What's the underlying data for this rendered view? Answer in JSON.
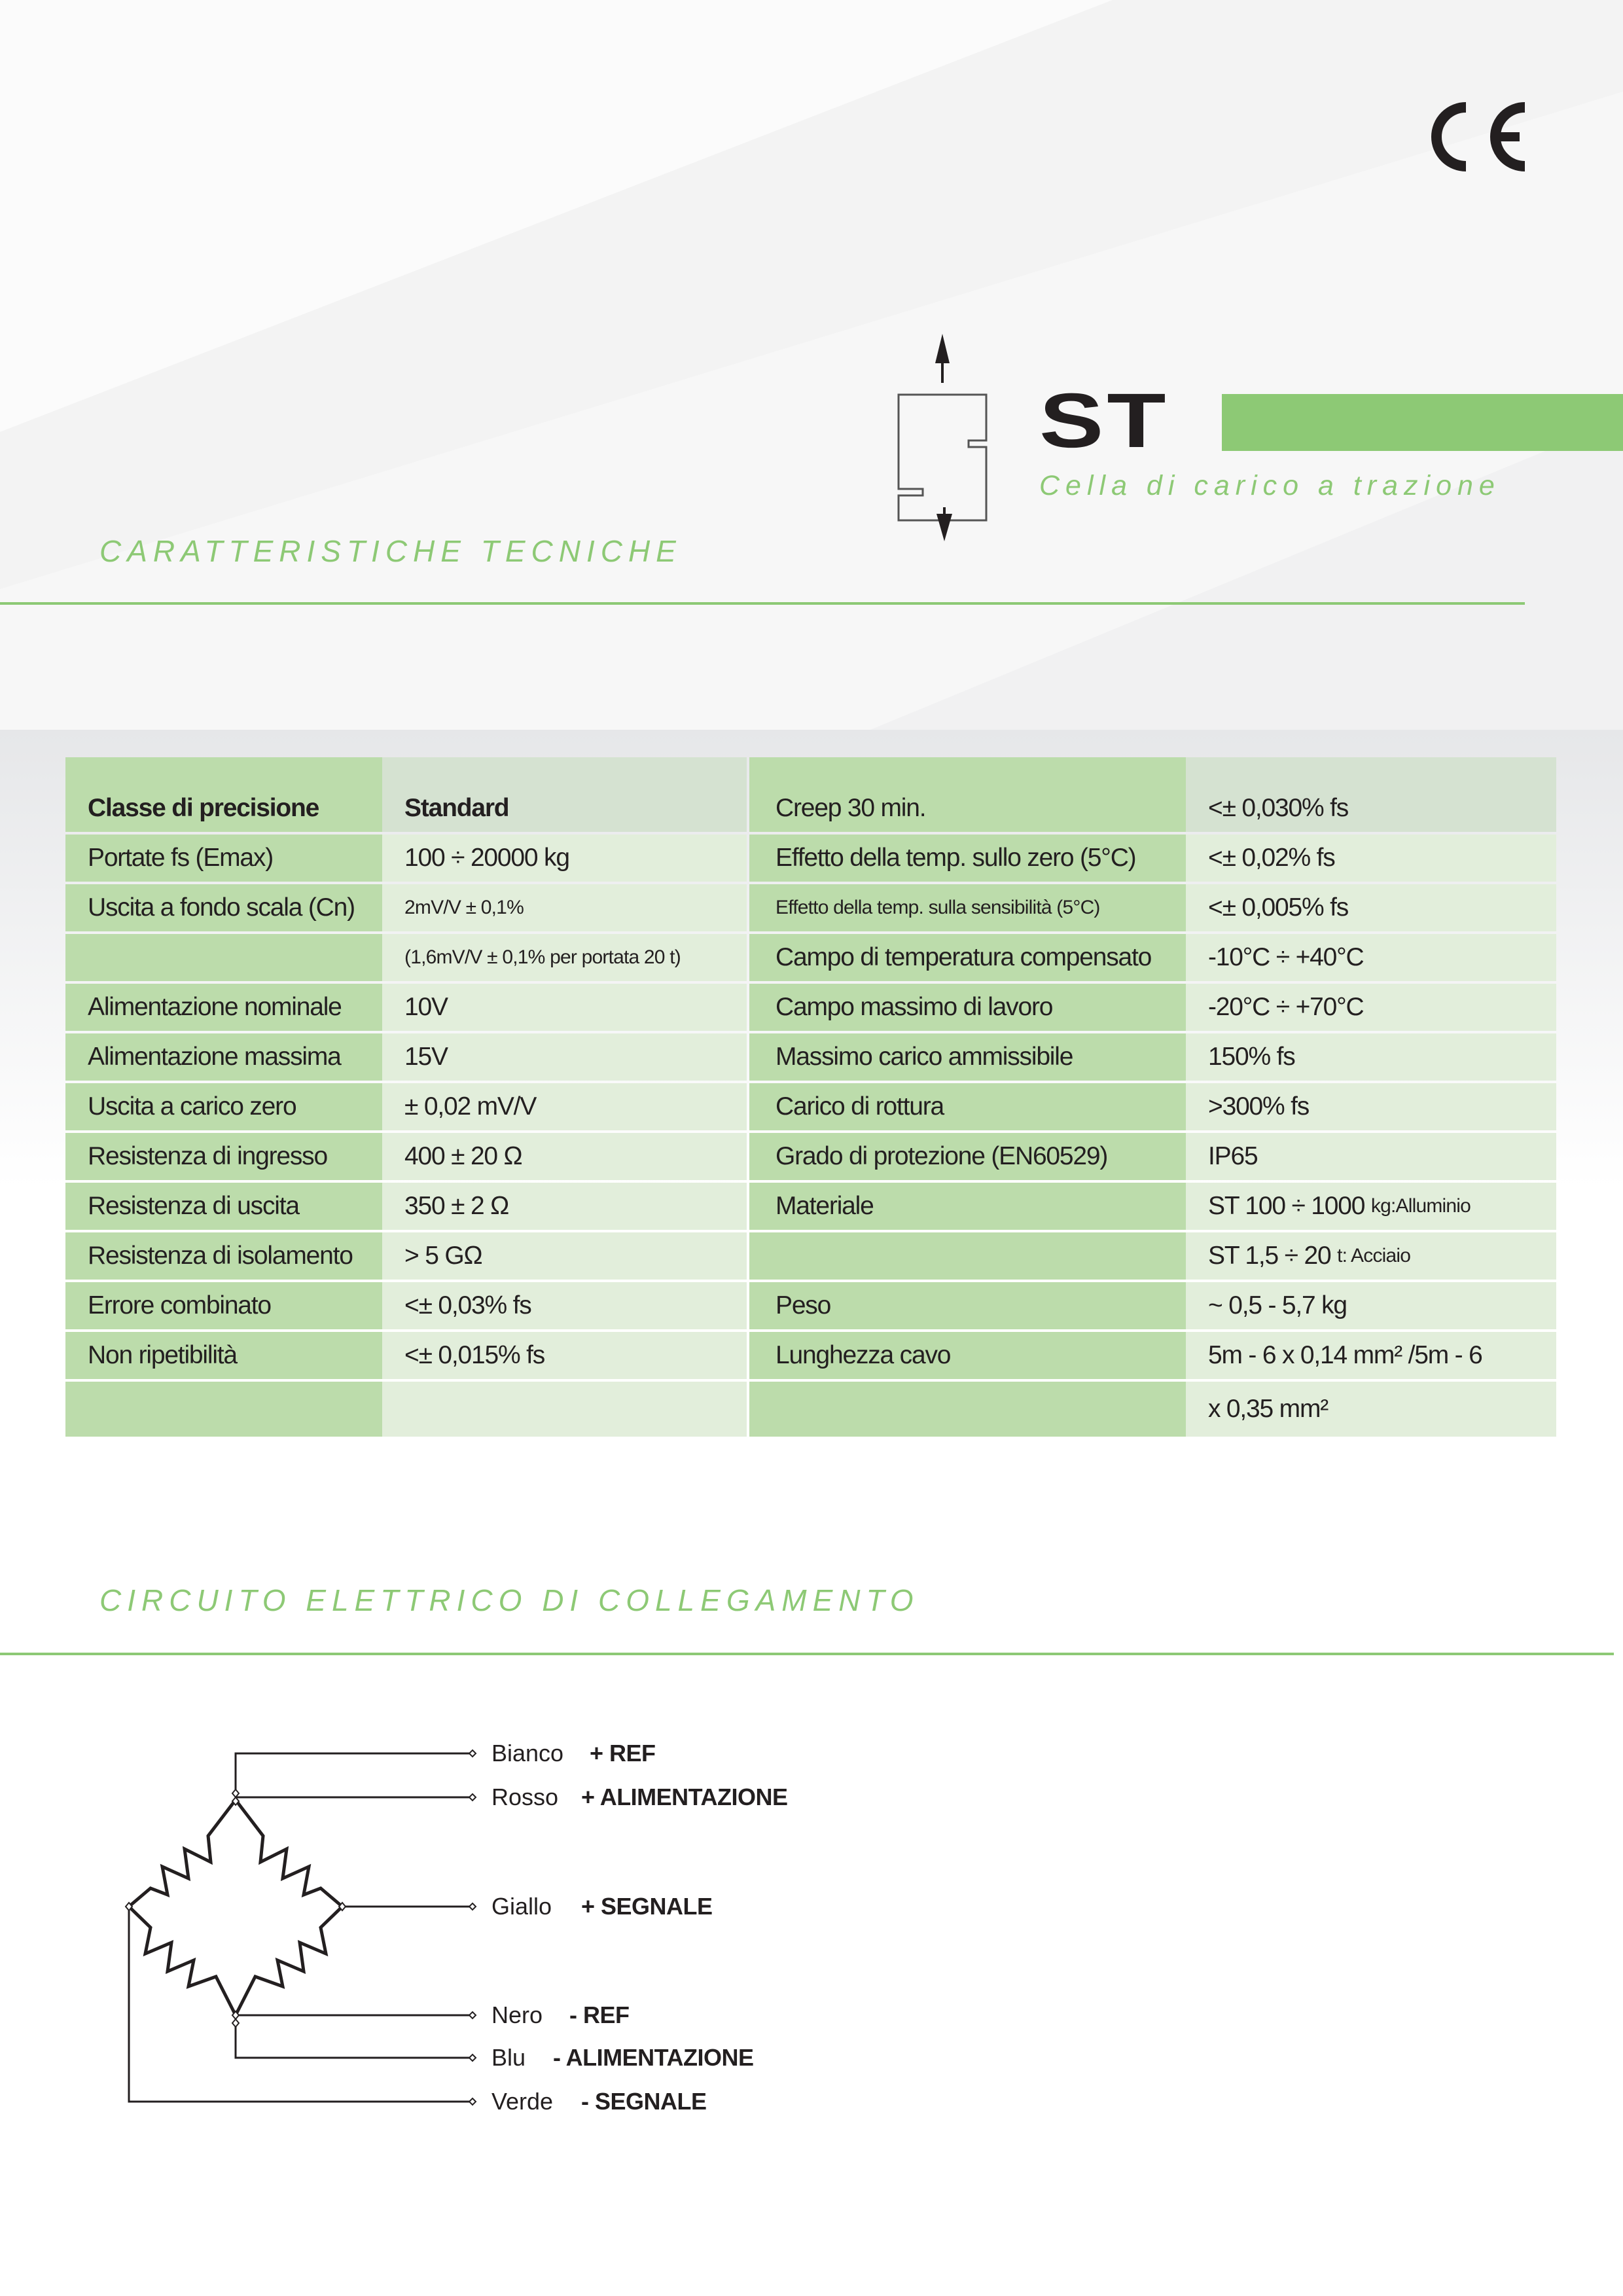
{
  "header": {
    "certification_mark": "CE",
    "product_code": "ST",
    "product_subtitle": "Cella di carico a trazione",
    "accent_color": "#8dc975"
  },
  "sections": {
    "specs_title": "CARATTERISTICHE TECNICHE",
    "circuit_title": "CIRCUITO ELETTRICO DI COLLEGAMENTO"
  },
  "specs_table": {
    "rows": [
      [
        {
          "main": "Classe di precisione"
        },
        {
          "main": "Standard"
        },
        {
          "main": "Creep 30 min."
        },
        {
          "main": "<± 0,030% fs"
        }
      ],
      [
        {
          "main": "Portate fs (Emax)"
        },
        {
          "main": "100 ÷ 20000 kg"
        },
        {
          "main": "Effetto della temp. sullo zero (5°C)"
        },
        {
          "main": "<± 0,02% fs"
        }
      ],
      [
        {
          "main": "Uscita a fondo scala (Cn)"
        },
        {
          "small": "2mV/V ± 0,1%"
        },
        {
          "small": "Effetto della temp. sulla sensibilità (5°C)"
        },
        {
          "main": "<± 0,005% fs"
        }
      ],
      [
        {},
        {
          "small": "(1,6mV/V ± 0,1% per portata 20 t)"
        },
        {
          "main": "Campo di temperatura compensato"
        },
        {
          "main": "-10°C ÷ +40°C"
        }
      ],
      [
        {
          "main": "Alimentazione nominale"
        },
        {
          "main": "10V"
        },
        {
          "main": "Campo massimo di lavoro"
        },
        {
          "main": "-20°C ÷ +70°C"
        }
      ],
      [
        {
          "main": "Alimentazione massima"
        },
        {
          "main": "15V"
        },
        {
          "main": "Massimo carico ammissibile"
        },
        {
          "main": "150% fs"
        }
      ],
      [
        {
          "main": "Uscita a carico zero"
        },
        {
          "main": "± 0,02 mV/V"
        },
        {
          "main": "Carico di rottura"
        },
        {
          "main": ">300% fs"
        }
      ],
      [
        {
          "main": "Resistenza di ingresso"
        },
        {
          "main": "400 ± 20 Ω"
        },
        {
          "main": "Grado di protezione (EN60529)"
        },
        {
          "main": "IP65"
        }
      ],
      [
        {
          "main": "Resistenza di uscita"
        },
        {
          "main": "350 ± 2 Ω"
        },
        {
          "main": "Materiale"
        },
        {
          "main": "ST 100 ÷ 1000 ",
          "small": "kg:Alluminio"
        }
      ],
      [
        {
          "main": "Resistenza di isolamento"
        },
        {
          "main": "> 5 GΩ"
        },
        {},
        {
          "main": "ST 1,5 ÷ 20 ",
          "small": "t: Acciaio"
        }
      ],
      [
        {
          "main": "Errore combinato"
        },
        {
          "main": "<± 0,03% fs"
        },
        {
          "main": "Peso"
        },
        {
          "main": "~ 0,5 - 5,7 kg"
        }
      ],
      [
        {
          "main": "Non ripetibilità"
        },
        {
          "main": "<± 0,015% fs"
        },
        {
          "main": "Lunghezza cavo"
        },
        {
          "main": "5m - 6 x 0,14 mm² /5m - 6"
        }
      ],
      [
        {},
        {},
        {},
        {
          "main": "x 0,35 mm²"
        }
      ]
    ]
  },
  "circuit": {
    "wires": [
      {
        "color": "Bianco",
        "function": "+ REF"
      },
      {
        "color": "Rosso",
        "function": "+ ALIMENTAZIONE"
      },
      {
        "color": "Giallo",
        "function": "+ SEGNALE"
      },
      {
        "color": "Nero",
        "function": "- REF"
      },
      {
        "color": "Blu",
        "function": "- ALIMENTAZIONE"
      },
      {
        "color": "Verde",
        "function": "- SEGNALE"
      }
    ]
  }
}
